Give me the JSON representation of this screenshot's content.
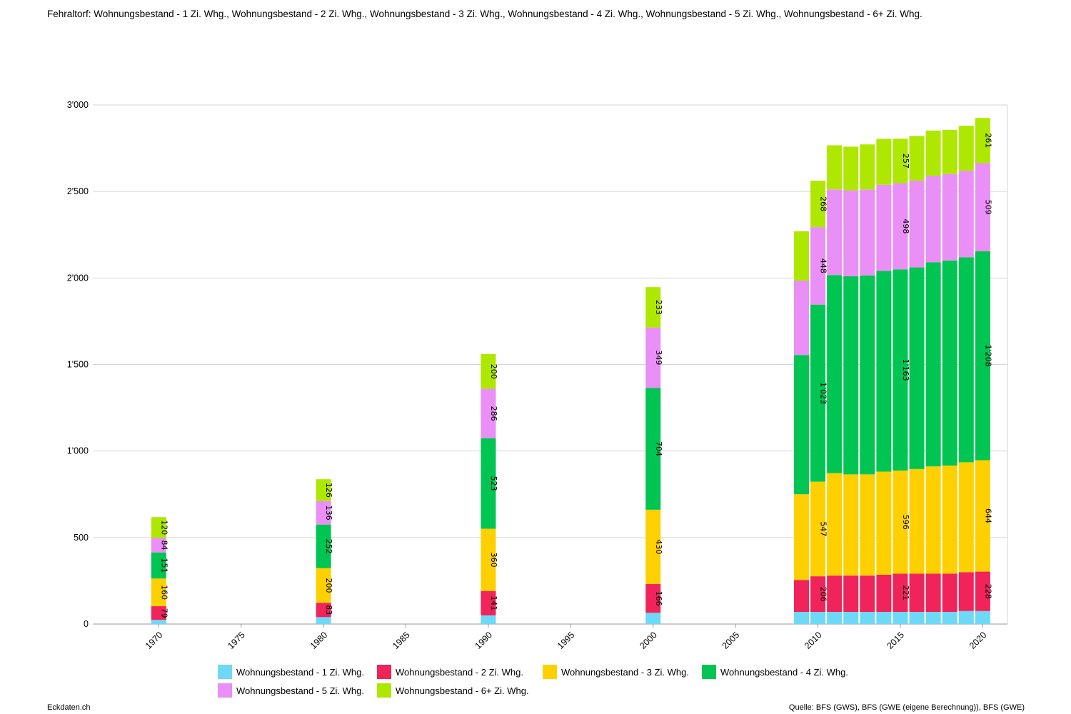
{
  "title": "Fehraltorf: Wohnungsbestand - 1 Zi. Whg., Wohnungsbestand - 2 Zi. Whg., Wohnungsbestand - 3 Zi. Whg., Wohnungsbestand - 4 Zi. Whg., Wohnungsbestand - 5 Zi. Whg., Wohnungsbestand - 6+ Zi. Whg.",
  "footer": {
    "brand": "Eckdaten.ch",
    "source": "Quelle: BFS (GWS), BFS (GWE (eigene Berechnung)), BFS (GWE)"
  },
  "chart_data": {
    "type": "bar",
    "stacked": true,
    "x": [
      1970,
      1980,
      1990,
      2000,
      2009,
      2010,
      2011,
      2012,
      2013,
      2014,
      2015,
      2016,
      2017,
      2018,
      2019,
      2020
    ],
    "xlim": [
      1966,
      2021.5
    ],
    "x_ticks": [
      1970,
      1975,
      1980,
      1985,
      1990,
      1995,
      2000,
      2005,
      2010,
      2015,
      2020
    ],
    "x_tick_labels": [
      "1970",
      "1975",
      "1980",
      "1985",
      "1990",
      "1995",
      "2000",
      "2005",
      "2010",
      "2015",
      "2020"
    ],
    "ylim": [
      0,
      3000
    ],
    "y_ticks": [
      0,
      500,
      1000,
      1500,
      2000,
      2500,
      3000
    ],
    "y_tick_labels": [
      "0",
      "500",
      "1'000",
      "1'500",
      "2'000",
      "2'500",
      "3'000"
    ],
    "grid": true,
    "legend_position": "bottom",
    "series": [
      {
        "name": "Wohnungsbestand - 1 Zi. Whg.",
        "color": "#6dd9f7",
        "values": [
          24,
          40,
          50,
          65,
          70,
          70,
          70,
          70,
          70,
          70,
          70,
          70,
          70,
          70,
          75,
          75
        ],
        "labels": [
          "",
          "",
          "",
          "",
          "",
          "",
          "",
          "",
          "",
          "",
          "",
          "",
          "",
          "",
          "",
          ""
        ]
      },
      {
        "name": "Wohnungsbestand - 2 Zi. Whg.",
        "color": "#f0245a",
        "values": [
          79,
          83,
          141,
          166,
          185,
          206,
          210,
          210,
          210,
          215,
          221,
          221,
          221,
          221,
          225,
          228
        ],
        "labels": [
          "79",
          "83",
          "141",
          "166",
          "",
          "206",
          "",
          "",
          "",
          "",
          "221",
          "",
          "",
          "",
          "",
          "228"
        ]
      },
      {
        "name": "Wohnungsbestand - 3 Zi. Whg.",
        "color": "#ffd000",
        "values": [
          160,
          200,
          360,
          430,
          495,
          547,
          592,
          585,
          585,
          596,
          596,
          605,
          620,
          625,
          635,
          644
        ],
        "labels": [
          "160",
          "200",
          "360",
          "430",
          "",
          "547",
          "",
          "",
          "",
          "",
          "596",
          "",
          "",
          "",
          "",
          "644"
        ]
      },
      {
        "name": "Wohnungsbestand - 4 Zi. Whg.",
        "color": "#00c552",
        "values": [
          151,
          252,
          523,
          704,
          805,
          1023,
          1145,
          1145,
          1150,
          1160,
          1163,
          1165,
          1180,
          1185,
          1185,
          1208
        ],
        "labels": [
          "151",
          "252",
          "523",
          "704",
          "",
          "1'023",
          "",
          "",
          "",
          "",
          "1'163",
          "",
          "",
          "",
          "",
          "1'208"
        ]
      },
      {
        "name": "Wohnungsbestand - 5 Zi. Whg.",
        "color": "#e98ff5",
        "values": [
          84,
          136,
          286,
          349,
          430,
          448,
          495,
          497,
          497,
          498,
          498,
          502,
          500,
          500,
          500,
          509
        ],
        "labels": [
          "84",
          "136",
          "286",
          "349",
          "",
          "448",
          "",
          "",
          "",
          "",
          "498",
          "",
          "",
          "",
          "",
          "509"
        ]
      },
      {
        "name": "Wohnungsbestand - 6+ Zi. Whg.",
        "color": "#aee800",
        "values": [
          120,
          126,
          200,
          233,
          285,
          268,
          255,
          252,
          260,
          265,
          257,
          258,
          261,
          255,
          260,
          261
        ],
        "labels": [
          "120",
          "126",
          "200",
          "233",
          "",
          "268",
          "",
          "",
          "",
          "",
          "257",
          "",
          "",
          "",
          "",
          "261"
        ]
      }
    ]
  }
}
